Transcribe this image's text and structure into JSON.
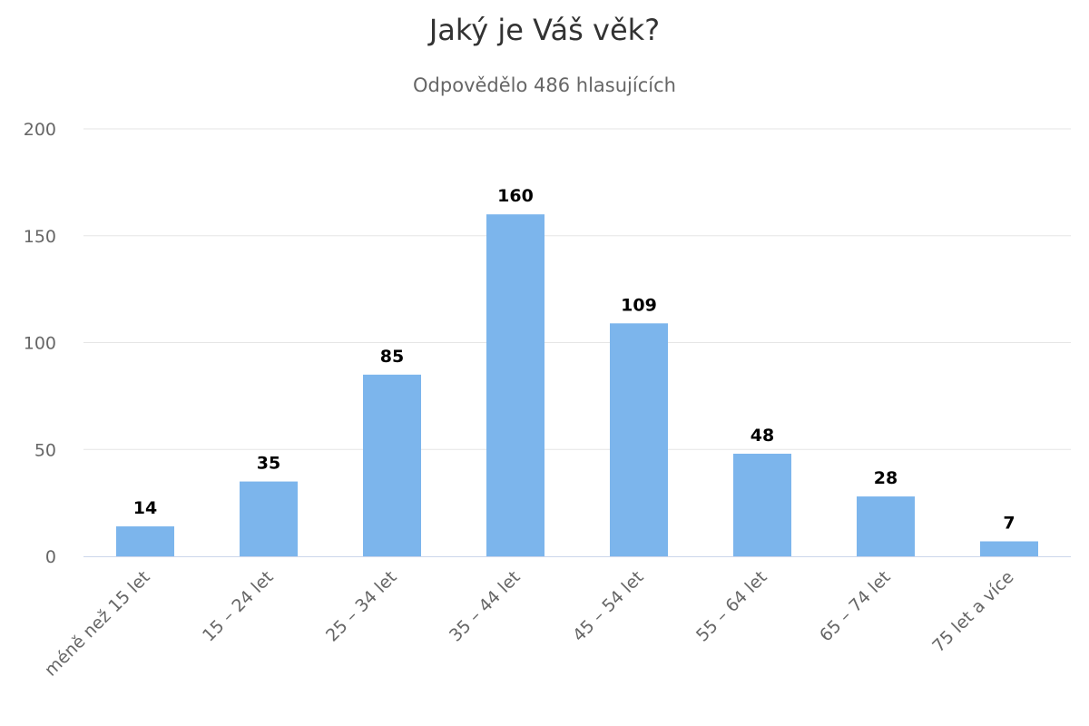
{
  "chart_data": {
    "type": "bar",
    "title": "Jaký je Váš věk?",
    "subtitle": "Odpovědělo 486 hlasujících",
    "categories": [
      "méně než 15 let",
      "15 – 24 let",
      "25 – 34 let",
      "35 – 44 let",
      "45 – 54 let",
      "55 – 64 let",
      "65 – 74 let",
      "75 let a více"
    ],
    "values": [
      14,
      35,
      85,
      160,
      109,
      48,
      28,
      7
    ],
    "yticks": [
      0,
      50,
      100,
      150,
      200
    ],
    "ylim": [
      0,
      200
    ],
    "xlabel": "",
    "ylabel": "",
    "grid": true,
    "data_labels": true,
    "bar_color": "#7cb5ec"
  }
}
